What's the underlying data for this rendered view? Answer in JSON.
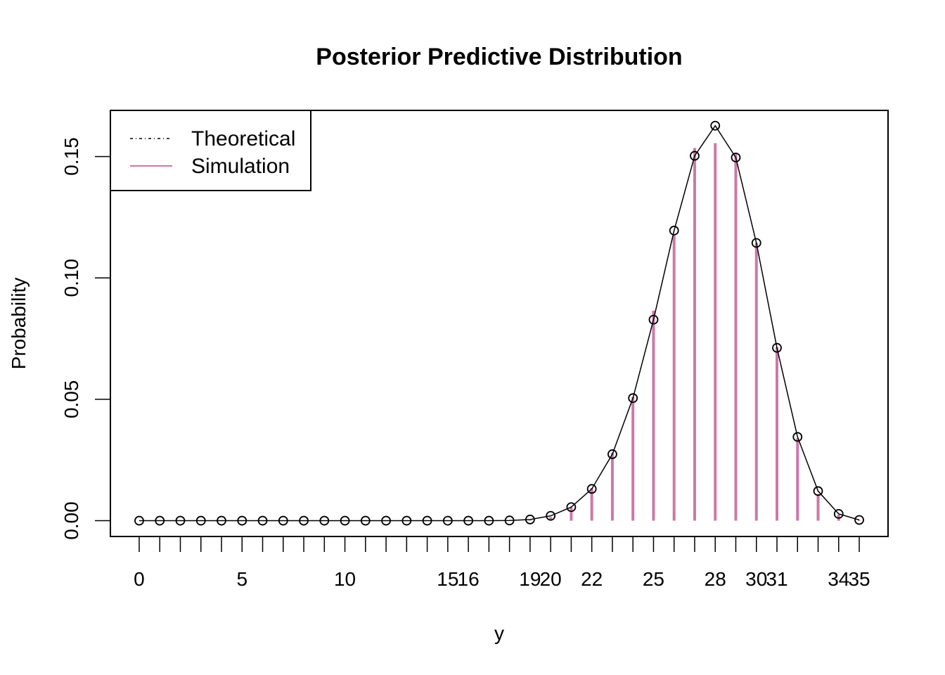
{
  "chart_data": {
    "type": "line",
    "title": "Posterior Predictive Distribution",
    "xlabel": "y",
    "ylabel": "Probability",
    "xlim": [
      -1.4,
      36.4
    ],
    "ylim": [
      -0.0065,
      0.169
    ],
    "x_tick_values": [
      0,
      5,
      10,
      15,
      16,
      19,
      20,
      22,
      25,
      28,
      30,
      31,
      34,
      35
    ],
    "x_tick_marks": [
      0,
      1,
      2,
      3,
      4,
      5,
      6,
      7,
      8,
      9,
      10,
      11,
      12,
      13,
      14,
      15,
      16,
      17,
      18,
      19,
      20,
      21,
      22,
      23,
      24,
      25,
      26,
      27,
      28,
      29,
      30,
      31,
      32,
      33,
      34,
      35
    ],
    "y_ticks": [
      "0.00",
      "0.05",
      "0.10",
      "0.15"
    ],
    "y_tick_values": [
      0,
      0.05,
      0.1,
      0.15
    ],
    "legend": {
      "position": "top-left",
      "entries": [
        {
          "label": "Theoretical",
          "style": "dot-dash",
          "color": "#000000"
        },
        {
          "label": "Simulation",
          "style": "solid",
          "color": "#CC79A7"
        }
      ]
    },
    "series": [
      {
        "name": "Theoretical",
        "color": "#000000",
        "marker": "open-circle",
        "x": [
          0,
          1,
          2,
          3,
          4,
          5,
          6,
          7,
          8,
          9,
          10,
          11,
          12,
          13,
          14,
          15,
          16,
          17,
          18,
          19,
          20,
          21,
          22,
          23,
          24,
          25,
          26,
          27,
          28,
          29,
          30,
          31,
          32,
          33,
          34,
          35
        ],
        "y": [
          0,
          0,
          0,
          0,
          0,
          0,
          0,
          0,
          0,
          0,
          0,
          0,
          0,
          0,
          0,
          0,
          0,
          0,
          0.0001,
          0.0005,
          0.002,
          0.0056,
          0.0131,
          0.0274,
          0.0505,
          0.0828,
          0.1195,
          0.1503,
          0.1627,
          0.1496,
          0.1144,
          0.0712,
          0.0345,
          0.0122,
          0.0028,
          0.0003
        ]
      },
      {
        "name": "Simulation",
        "color": "#CC79A7",
        "style": "vertical-lines",
        "x": [
          19,
          20,
          21,
          22,
          23,
          24,
          25,
          26,
          27,
          28,
          29,
          30,
          31,
          32,
          33,
          34,
          35
        ],
        "y": [
          0.0002,
          0.0015,
          0.0055,
          0.0135,
          0.028,
          0.051,
          0.0865,
          0.1175,
          0.1535,
          0.1555,
          0.1515,
          0.1145,
          0.0715,
          0.034,
          0.011,
          0.0025,
          0.0003
        ]
      }
    ]
  }
}
